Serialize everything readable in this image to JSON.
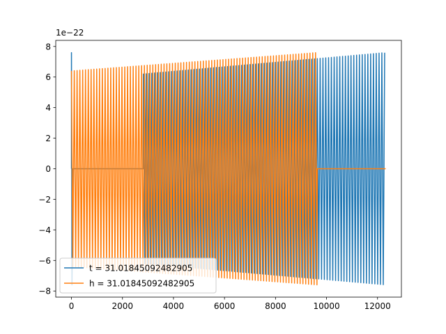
{
  "chart_data": {
    "type": "line",
    "title": "",
    "xlabel": "",
    "ylabel": "",
    "y_offset_label": "1e−22",
    "xlim": [
      -616,
      12936
    ],
    "ylim": [
      -8.4,
      8.4
    ],
    "x_ticks": [
      0,
      2000,
      4000,
      6000,
      8000,
      10000,
      12000
    ],
    "x_tick_labels": [
      "0",
      "2000",
      "4000",
      "6000",
      "8000",
      "10000",
      "12000"
    ],
    "y_ticks": [
      -8,
      -6,
      -4,
      -2,
      0,
      2,
      4,
      6,
      8
    ],
    "y_tick_labels": [
      "−8",
      "−6",
      "−4",
      "−2",
      "0",
      "2",
      "4",
      "6",
      "8"
    ],
    "grid": false,
    "legend_position": "lower-left",
    "series": [
      {
        "name": "t = 31.01845092482905",
        "color": "#1f77b4",
        "x_range": [
          0,
          12320
        ],
        "oscillation_period": 110,
        "segments": [
          {
            "x_start": 0,
            "x_end": 60,
            "kind": "spike",
            "peak": 7.6,
            "trough": -7.6
          },
          {
            "x_start": 60,
            "x_end": 2820,
            "kind": "flat",
            "value": 0
          },
          {
            "x_start": 2820,
            "x_end": 12320,
            "kind": "oscillation",
            "amplitude_start": 6.2,
            "amplitude_end": 7.6
          }
        ]
      },
      {
        "name": "h = 31.01845092482905",
        "color": "#ff7f0e",
        "x_range": [
          0,
          12320
        ],
        "oscillation_period": 110,
        "segments": [
          {
            "x_start": 0,
            "x_end": 9640,
            "kind": "oscillation",
            "amplitude_start": 6.4,
            "amplitude_end": 7.6
          },
          {
            "x_start": 9640,
            "x_end": 12320,
            "kind": "flat",
            "value": 0
          }
        ]
      }
    ]
  }
}
